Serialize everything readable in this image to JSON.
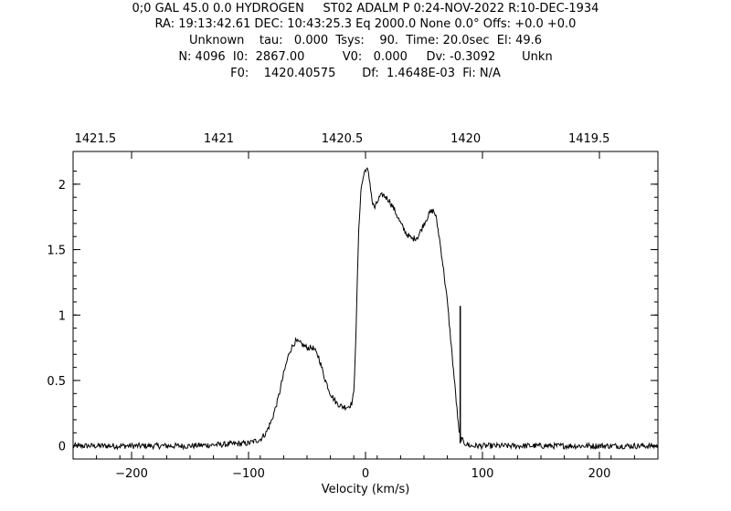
{
  "header": {
    "lines": [
      "0;0 GAL 45.0 0.0 HYDROGEN     ST02 ADALM P 0:24-NOV-2022 R:10-DEC-1934",
      "RA: 19:13:42.61 DEC: 10:43:25.3 Eq 2000.0 None 0.0° Offs: +0.0 +0.0",
      "Unknown    tau:   0.000  Tsys:    90.  Time: 20.0sec  El: 49.6",
      "N: 4096  I0:  2867.00          V0:   0.000     Dv: -0.3092       Unkn",
      "F0:    1420.40575       Df:  1.4648E-03  Fi: N/A"
    ]
  },
  "chart_data": {
    "type": "line",
    "xlabel": "Velocity (km/s)",
    "ylabel": "",
    "xlim": [
      -250,
      250
    ],
    "ylim": [
      -0.1,
      2.25
    ],
    "x_ticks": [
      -200,
      -100,
      0,
      100,
      200
    ],
    "x_tick_labels": [
      "−200",
      "−100",
      "0",
      "100",
      "200"
    ],
    "y_ticks": [
      0,
      0.5,
      1,
      1.5,
      2
    ],
    "y_tick_labels": [
      "0",
      "0.5",
      "1",
      "1.5",
      "2"
    ],
    "top_axis": {
      "label": "",
      "ticks_mhz": [
        1421.5,
        1421,
        1420.5,
        1420,
        1419.5
      ],
      "tick_labels": [
        "1421.5",
        "1421",
        "1420.5",
        "1420",
        "1419.5"
      ]
    },
    "series": [
      {
        "name": "",
        "color": "#000000",
        "x": [
          -250,
          -200,
          -150,
          -100,
          -90,
          -85,
          -80,
          -75,
          -70,
          -65,
          -60,
          -55,
          -50,
          -45,
          -40,
          -35,
          -30,
          -25,
          -20,
          -15,
          -12,
          -10,
          -8,
          -6,
          -4,
          -2,
          0,
          2,
          4,
          6,
          8,
          10,
          12,
          15,
          20,
          25,
          30,
          35,
          40,
          45,
          50,
          55,
          58,
          60,
          63,
          66,
          70,
          74,
          78,
          80,
          82,
          85,
          90,
          100,
          150,
          200,
          250
        ],
        "y": [
          0.0,
          0.0,
          0.0,
          0.02,
          0.05,
          0.1,
          0.2,
          0.35,
          0.55,
          0.72,
          0.8,
          0.78,
          0.75,
          0.75,
          0.68,
          0.52,
          0.4,
          0.33,
          0.3,
          0.3,
          0.32,
          0.4,
          0.9,
          1.6,
          1.95,
          2.05,
          2.12,
          2.1,
          2.0,
          1.85,
          1.82,
          1.86,
          1.9,
          1.92,
          1.88,
          1.8,
          1.7,
          1.62,
          1.58,
          1.6,
          1.7,
          1.78,
          1.8,
          1.76,
          1.6,
          1.4,
          1.1,
          0.7,
          0.3,
          0.1,
          0.05,
          0.02,
          0.0,
          0.0,
          0.0,
          0.0,
          0.0
        ]
      }
    ],
    "marker_line": {
      "x": 81,
      "y_from": 0.02,
      "y_to": 1.07,
      "color": "#000000"
    },
    "grid": false,
    "legend": "none"
  }
}
